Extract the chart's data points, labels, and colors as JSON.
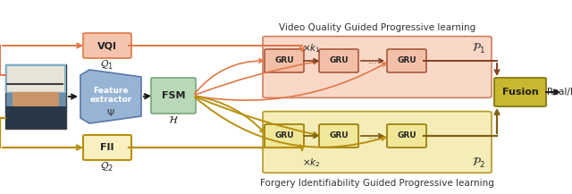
{
  "title_top": "Video Quality Guided Progressive learning",
  "title_bottom": "Forgery Identifiability Guided Progressive learning",
  "vqi_label": "VQI",
  "vqi_sublabel": "$\\mathcal{Q}_1$",
  "fii_label": "FII",
  "fii_sublabel": "$\\mathcal{Q}_2$",
  "fe_label1": "Feature",
  "fe_label2": "extractor",
  "fe_sublabel": "$\\Psi$",
  "fsm_label": "FSM",
  "fsm_sublabel": "$\\mathcal{H}$",
  "fusion_label": "Fusion",
  "output_label": "Real/Fake",
  "p1_label": "$\\mathcal{P}_1$",
  "p2_label": "$\\mathcal{P}_2$",
  "k1_label": "$\\times k_1$",
  "k2_label": "$\\times k_2$",
  "gru_label": "GRU",
  "dots_label": "...",
  "bg_color": "#ffffff",
  "vqi_box_color": "#f5c4ae",
  "vqi_box_edge": "#e07848",
  "fii_box_color": "#f8f0c0",
  "fii_box_edge": "#b89010",
  "fsm_box_color": "#b8d8b8",
  "fsm_box_edge": "#78a878",
  "fusion_box_color": "#c8b830",
  "fusion_box_edge": "#908020",
  "gru_top_color": "#f2c0a8",
  "gru_top_edge": "#a05030",
  "gru_bot_color": "#f0e898",
  "gru_bot_edge": "#a08010",
  "top_bg_color": "#fad8c8",
  "top_bg_edge": "#d08060",
  "bot_bg_color": "#f5edb8",
  "bot_bg_edge": "#b89828",
  "orange_color": "#e07848",
  "dark_orange": "#804020",
  "gold_color": "#b89010",
  "dark_gold": "#806010",
  "arrow_black": "#1a1a1a",
  "fe_color": "#98b4d4",
  "fe_edge": "#5878a8",
  "fe_text": "#ffffff"
}
